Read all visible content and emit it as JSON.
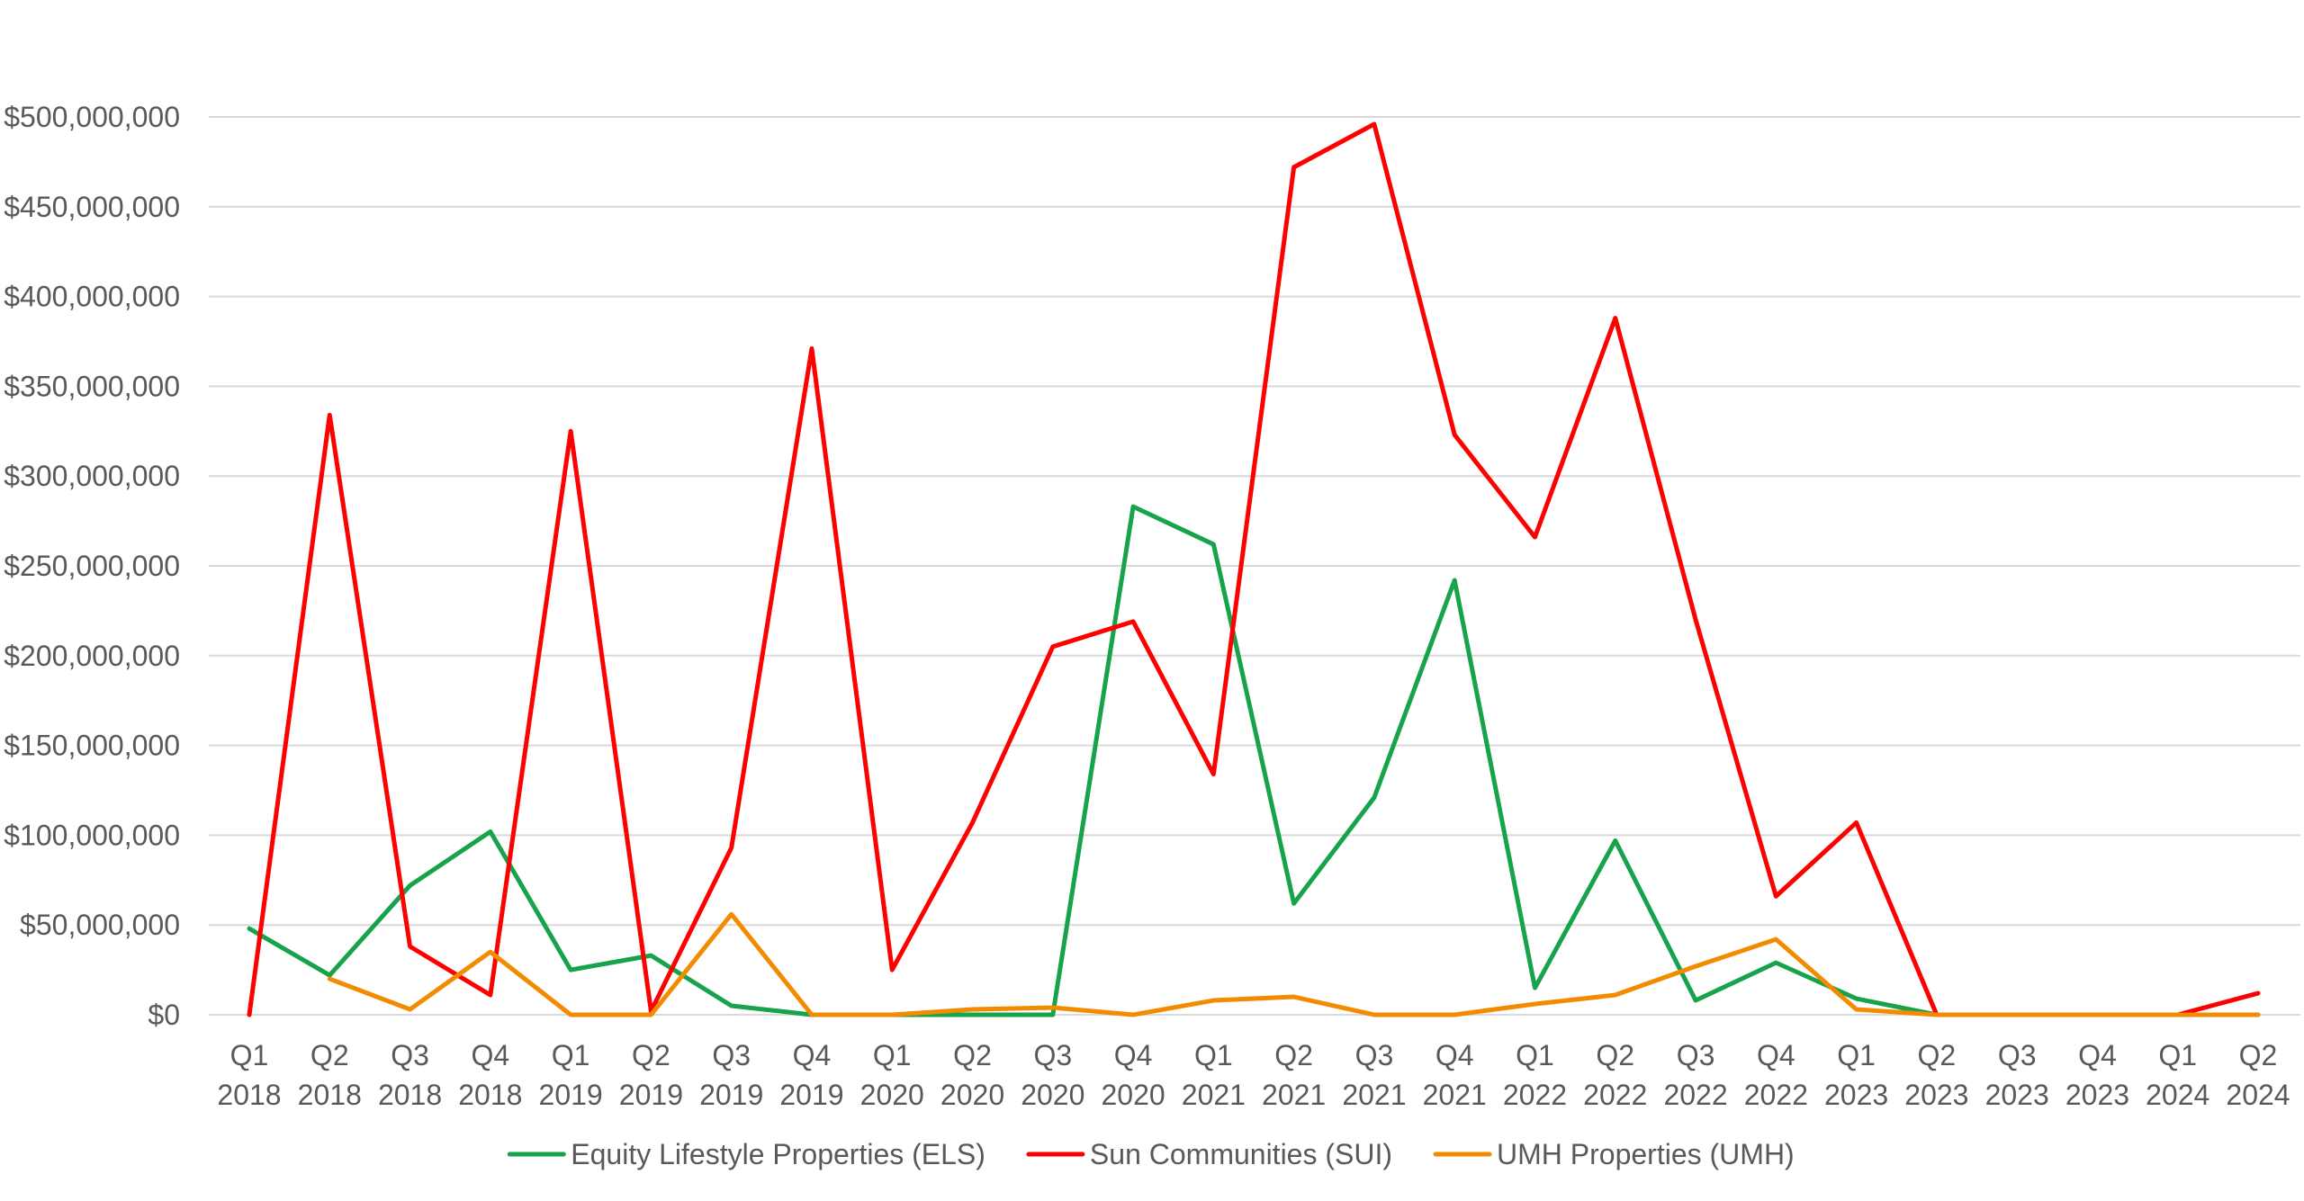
{
  "chart_data": {
    "type": "line",
    "title": "",
    "xlabel": "",
    "ylabel": "",
    "ylim": [
      0,
      500000000
    ],
    "ytick_step": 50000000,
    "grid": true,
    "legend_position": "bottom",
    "y_tick_labels": [
      "$0",
      "$50,000,000",
      "$100,000,000",
      "$150,000,000",
      "$200,000,000",
      "$250,000,000",
      "$300,000,000",
      "$350,000,000",
      "$400,000,000",
      "$450,000,000",
      "$500,000,000"
    ],
    "categories": [
      [
        "Q1",
        "2018"
      ],
      [
        "Q2",
        "2018"
      ],
      [
        "Q3",
        "2018"
      ],
      [
        "Q4",
        "2018"
      ],
      [
        "Q1",
        "2019"
      ],
      [
        "Q2",
        "2019"
      ],
      [
        "Q3",
        "2019"
      ],
      [
        "Q4",
        "2019"
      ],
      [
        "Q1",
        "2020"
      ],
      [
        "Q2",
        "2020"
      ],
      [
        "Q3",
        "2020"
      ],
      [
        "Q4",
        "2020"
      ],
      [
        "Q1",
        "2021"
      ],
      [
        "Q2",
        "2021"
      ],
      [
        "Q3",
        "2021"
      ],
      [
        "Q4",
        "2021"
      ],
      [
        "Q1",
        "2022"
      ],
      [
        "Q2",
        "2022"
      ],
      [
        "Q3",
        "2022"
      ],
      [
        "Q4",
        "2022"
      ],
      [
        "Q1",
        "2023"
      ],
      [
        "Q2",
        "2023"
      ],
      [
        "Q3",
        "2023"
      ],
      [
        "Q4",
        "2023"
      ],
      [
        "Q1",
        "2024"
      ],
      [
        "Q2",
        "2024"
      ]
    ],
    "series": [
      {
        "name": "Equity Lifestyle Properties (ELS)",
        "color": "#16a34a",
        "values": [
          48000000,
          22000000,
          72000000,
          102000000,
          25000000,
          33000000,
          5000000,
          0,
          0,
          0,
          0,
          283000000,
          262000000,
          62000000,
          121000000,
          242000000,
          15000000,
          97000000,
          8000000,
          29000000,
          9000000,
          0,
          0,
          0,
          0,
          0
        ]
      },
      {
        "name": "Sun Communities (SUI)",
        "color": "#ff0000",
        "values": [
          0,
          334000000,
          38000000,
          11000000,
          325000000,
          2000000,
          93000000,
          371000000,
          25000000,
          107000000,
          205000000,
          219000000,
          134000000,
          472000000,
          496000000,
          323000000,
          266000000,
          388000000,
          220000000,
          66000000,
          107000000,
          0,
          0,
          0,
          0,
          12000000
        ]
      },
      {
        "name": "UMH Properties (UMH)",
        "color": "#f38b00",
        "values": [
          null,
          20000000,
          3000000,
          35000000,
          0,
          0,
          56000000,
          0,
          0,
          3000000,
          4000000,
          0,
          8000000,
          10000000,
          0,
          0,
          6000000,
          11000000,
          27000000,
          42000000,
          3000000,
          0,
          0,
          0,
          0,
          0
        ]
      }
    ]
  }
}
